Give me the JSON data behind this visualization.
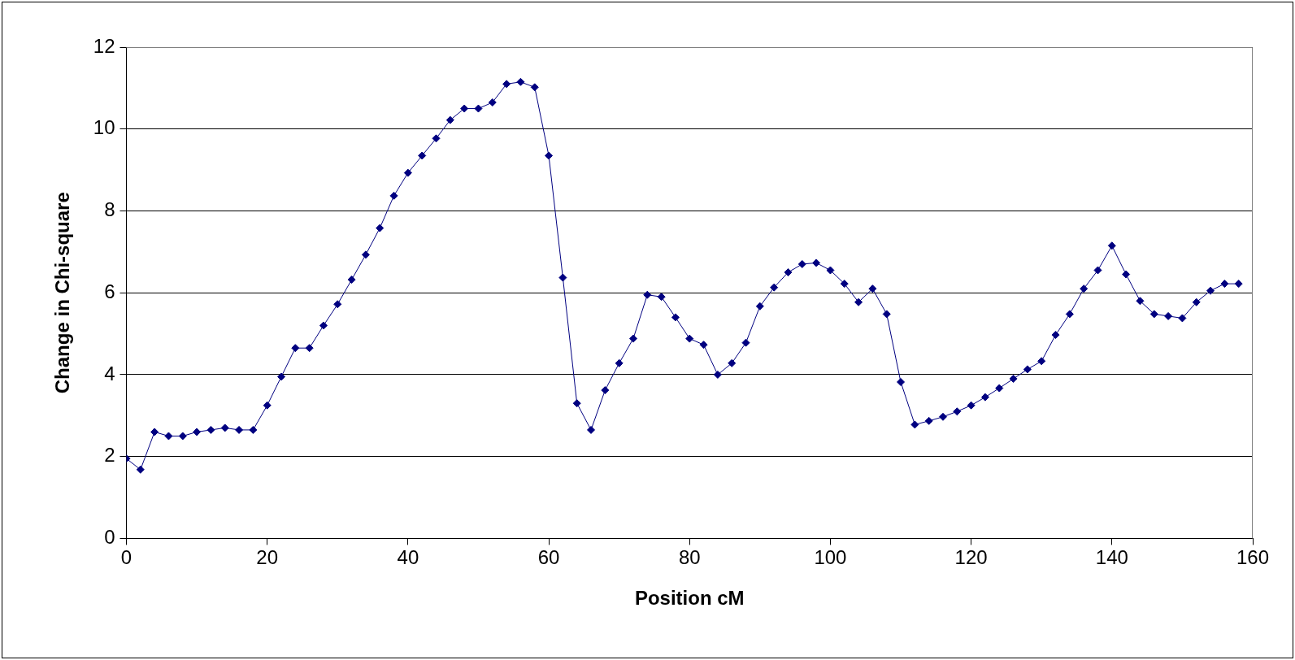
{
  "chart_data": {
    "type": "line",
    "xlabel": "Position cM",
    "ylabel": "Change in Chi-square",
    "x": [
      0,
      2,
      4,
      6,
      8,
      10,
      12,
      14,
      16,
      18,
      20,
      22,
      24,
      26,
      28,
      30,
      32,
      34,
      36,
      38,
      40,
      42,
      44,
      46,
      48,
      50,
      52,
      54,
      56,
      58,
      60,
      62,
      64,
      66,
      68,
      70,
      72,
      74,
      76,
      78,
      80,
      82,
      84,
      86,
      88,
      90,
      92,
      94,
      96,
      98,
      100,
      102,
      104,
      106,
      108,
      110,
      112,
      114,
      116,
      118,
      120,
      122,
      124,
      126,
      128,
      130,
      132,
      134,
      136,
      138,
      140,
      142,
      144,
      146,
      148,
      150,
      152,
      154,
      156,
      158
    ],
    "series": [
      {
        "color": "#000080",
        "values": [
          1.95,
          1.68,
          2.6,
          2.5,
          2.5,
          2.6,
          2.65,
          2.7,
          2.65,
          2.65,
          3.25,
          3.95,
          4.65,
          4.65,
          5.2,
          5.72,
          6.32,
          6.93,
          7.58,
          8.37,
          8.93,
          9.35,
          9.77,
          10.22,
          10.5,
          10.5,
          10.65,
          11.1,
          11.15,
          11.02,
          9.35,
          6.37,
          3.3,
          2.65,
          3.62,
          4.28,
          4.88,
          5.95,
          5.9,
          5.4,
          4.88,
          4.73,
          4.0,
          4.28,
          4.78,
          5.67,
          6.13,
          6.5,
          6.7,
          6.73,
          6.55,
          6.22,
          5.77,
          6.1,
          5.48,
          3.82,
          2.78,
          2.87,
          2.97,
          3.1,
          3.25,
          3.45,
          3.67,
          3.9,
          4.13,
          4.33,
          4.97,
          5.48,
          6.1,
          6.55,
          7.15,
          6.45,
          5.8,
          5.48,
          5.43,
          5.38,
          5.77,
          6.05,
          6.22,
          6.22
        ]
      }
    ],
    "xlim": [
      0,
      160
    ],
    "xticks": [
      0,
      20,
      40,
      60,
      80,
      100,
      120,
      140,
      160
    ],
    "ylim": [
      0,
      12
    ],
    "yticks": [
      0,
      2,
      4,
      6,
      8,
      10,
      12
    ],
    "grid": "y",
    "marker": "diamond",
    "line_style": "solid",
    "legend": false
  }
}
